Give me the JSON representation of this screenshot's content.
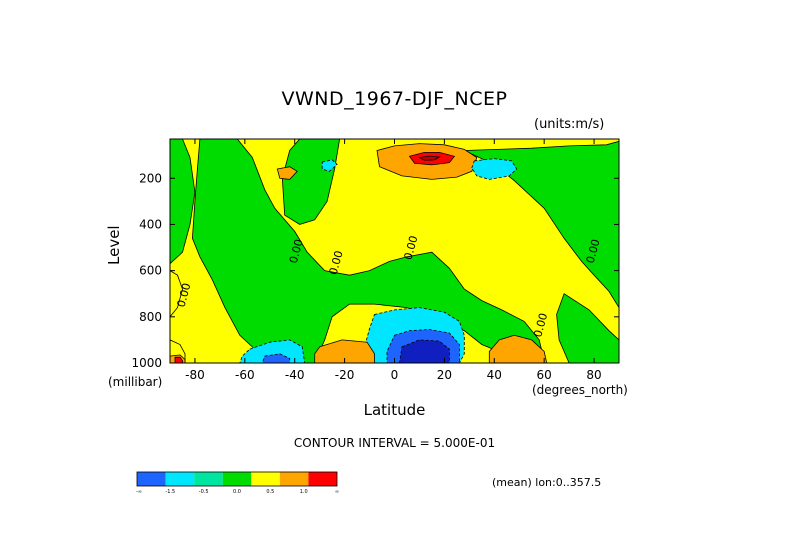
{
  "chart_data": {
    "type": "heatmap",
    "title": "VWND_1967-DJF_NCEP",
    "units_label": "(units:m/s)",
    "xlabel": "Latitude",
    "xunits": "(degrees_north)",
    "ylabel": "Level",
    "yunits": "(millibar)",
    "xlim": [
      -90,
      90
    ],
    "ylim": [
      1000,
      0
    ],
    "x_ticks": [
      "-80",
      "-60",
      "-40",
      "-20",
      "0",
      "20",
      "40",
      "60",
      "80"
    ],
    "x_tick_values": [
      -80,
      -60,
      -40,
      -20,
      0,
      20,
      40,
      60,
      80
    ],
    "y_ticks": [
      "200",
      "400",
      "600",
      "800",
      "1000"
    ],
    "y_tick_values": [
      200,
      400,
      600,
      800,
      1000
    ],
    "contour_interval_text": "CONTOUR INTERVAL = 5.000E-01",
    "mean_text": "(mean) lon:0..357.5",
    "contour_labels": [
      {
        "text": "0.00",
        "x": -83,
        "y": 710
      },
      {
        "text": "0.00",
        "x": -38,
        "y": 520
      },
      {
        "text": "0.00",
        "x": -22,
        "y": 570
      },
      {
        "text": "0.00",
        "x": 8,
        "y": 505
      },
      {
        "text": "0.00",
        "x": 60,
        "y": 840
      },
      {
        "text": "0.00",
        "x": 81,
        "y": 520
      }
    ],
    "colorbar": {
      "labels": [
        "-∞",
        "-1.5",
        "-0.5",
        "0.0",
        "0.5",
        "1.0",
        "∞"
      ],
      "colors": [
        "#1e64ff",
        "#00e6ff",
        "#00e6a0",
        "#00dc00",
        "#ffff00",
        "#ffa500",
        "#ff0000"
      ]
    },
    "level_colors": {
      "strong_negative": "#1020c0",
      "negative": "#1e64ff",
      "weak_negative": "#00e6ff",
      "near_zero_negative": "#00dc00",
      "near_zero_positive": "#ffff00",
      "positive": "#ffa500",
      "strong_positive": "#ff0000",
      "max_positive": "#c00000"
    },
    "regions": [
      {
        "level": "near_zero_positive",
        "points": [
          [
            -90,
            30
          ],
          [
            90,
            30
          ],
          [
            90,
            1000
          ],
          [
            -90,
            1000
          ]
        ]
      },
      {
        "level": "near_zero_negative",
        "points": [
          [
            -90,
            30
          ],
          [
            -85,
            30
          ],
          [
            -82,
            110
          ],
          [
            -80,
            260
          ],
          [
            -82,
            400
          ],
          [
            -85,
            520
          ],
          [
            -90,
            570
          ]
        ]
      },
      {
        "level": "near_zero_negative",
        "points": [
          [
            -78,
            30
          ],
          [
            -63,
            30
          ],
          [
            -57,
            110
          ],
          [
            -52,
            250
          ],
          [
            -48,
            330
          ],
          [
            -40,
            430
          ],
          [
            -35,
            520
          ],
          [
            -28,
            600
          ],
          [
            -18,
            620
          ],
          [
            -10,
            600
          ],
          [
            -2,
            560
          ],
          [
            5,
            540
          ],
          [
            15,
            520
          ],
          [
            22,
            590
          ],
          [
            28,
            680
          ],
          [
            35,
            730
          ],
          [
            43,
            770
          ],
          [
            52,
            820
          ],
          [
            58,
            900
          ],
          [
            60,
            990
          ],
          [
            53,
            1000
          ],
          [
            44,
            960
          ],
          [
            35,
            920
          ],
          [
            28,
            860
          ],
          [
            18,
            810
          ],
          [
            5,
            760
          ],
          [
            -8,
            745
          ],
          [
            -18,
            745
          ],
          [
            -25,
            800
          ],
          [
            -28,
            900
          ],
          [
            -32,
            1000
          ],
          [
            -45,
            1000
          ],
          [
            -55,
            950
          ],
          [
            -62,
            880
          ],
          [
            -68,
            760
          ],
          [
            -73,
            640
          ],
          [
            -78,
            540
          ],
          [
            -81,
            460
          ],
          [
            -80,
            300
          ],
          [
            -79,
            160
          ]
        ]
      },
      {
        "level": "near_zero_negative",
        "points": [
          [
            -38,
            30
          ],
          [
            -22,
            30
          ],
          [
            -24,
            160
          ],
          [
            -27,
            300
          ],
          [
            -32,
            380
          ],
          [
            -38,
            400
          ],
          [
            -44,
            360
          ],
          [
            -45,
            200
          ],
          [
            -42,
            80
          ]
        ]
      },
      {
        "level": "near_zero_negative",
        "points": [
          [
            28,
            80
          ],
          [
            55,
            70
          ],
          [
            70,
            60
          ],
          [
            85,
            55
          ],
          [
            90,
            40
          ],
          [
            90,
            760
          ],
          [
            86,
            690
          ],
          [
            80,
            620
          ],
          [
            75,
            560
          ],
          [
            68,
            460
          ],
          [
            60,
            330
          ],
          [
            48,
            210
          ],
          [
            40,
            140
          ],
          [
            32,
            100
          ]
        ]
      },
      {
        "level": "near_zero_negative",
        "points": [
          [
            68,
            700
          ],
          [
            78,
            770
          ],
          [
            86,
            860
          ],
          [
            90,
            900
          ],
          [
            90,
            1000
          ],
          [
            70,
            1000
          ],
          [
            66,
            900
          ],
          [
            65,
            790
          ]
        ]
      },
      {
        "level": "near_zero_positive",
        "points": [
          [
            -90,
            600
          ],
          [
            -87,
            620
          ],
          [
            -85,
            680
          ],
          [
            -87,
            760
          ],
          [
            -90,
            800
          ]
        ]
      },
      {
        "level": "near_zero_positive",
        "points": [
          [
            -90,
            900
          ],
          [
            -86,
            920
          ],
          [
            -84,
            960
          ],
          [
            -84,
            1000
          ],
          [
            -90,
            1000
          ]
        ]
      },
      {
        "level": "positive",
        "points": [
          [
            -90,
            970
          ],
          [
            -86,
            965
          ],
          [
            -84,
            985
          ],
          [
            -84,
            1000
          ],
          [
            -90,
            1000
          ]
        ]
      },
      {
        "level": "strong_positive",
        "points": [
          [
            -88,
            975
          ],
          [
            -86,
            975
          ],
          [
            -85,
            990
          ],
          [
            -85,
            1000
          ],
          [
            -88,
            1000
          ]
        ]
      },
      {
        "level": "positive",
        "points": [
          [
            -7,
            80
          ],
          [
            0,
            60
          ],
          [
            10,
            50
          ],
          [
            20,
            55
          ],
          [
            28,
            75
          ],
          [
            33,
            110
          ],
          [
            31,
            170
          ],
          [
            25,
            195
          ],
          [
            15,
            205
          ],
          [
            3,
            190
          ],
          [
            -6,
            150
          ]
        ]
      },
      {
        "level": "strong_positive",
        "points": [
          [
            6,
            105
          ],
          [
            12,
            88
          ],
          [
            18,
            88
          ],
          [
            24,
            105
          ],
          [
            22,
            132
          ],
          [
            15,
            142
          ],
          [
            8,
            135
          ]
        ]
      },
      {
        "level": "max_positive",
        "points": [
          [
            10,
            110
          ],
          [
            14,
            104
          ],
          [
            18,
            108
          ],
          [
            16,
            120
          ],
          [
            12,
            122
          ]
        ]
      },
      {
        "level": "positive",
        "points": [
          [
            -47,
            160
          ],
          [
            -42,
            150
          ],
          [
            -39,
            170
          ],
          [
            -42,
            205
          ],
          [
            -46,
            200
          ]
        ]
      },
      {
        "level": "weak_negative",
        "points": [
          [
            -29,
            130
          ],
          [
            -25,
            120
          ],
          [
            -23,
            140
          ],
          [
            -26,
            170
          ],
          [
            -29,
            160
          ]
        ]
      },
      {
        "level": "weak_negative",
        "points": [
          [
            32,
            125
          ],
          [
            40,
            115
          ],
          [
            47,
            125
          ],
          [
            49,
            160
          ],
          [
            46,
            190
          ],
          [
            38,
            205
          ],
          [
            33,
            190
          ],
          [
            31,
            155
          ]
        ]
      },
      {
        "level": "weak_negative",
        "points": [
          [
            -8,
            790
          ],
          [
            0,
            770
          ],
          [
            10,
            760
          ],
          [
            20,
            780
          ],
          [
            26,
            820
          ],
          [
            28,
            880
          ],
          [
            28,
            960
          ],
          [
            26,
            1000
          ],
          [
            -12,
            1000
          ],
          [
            -12,
            930
          ],
          [
            -10,
            850
          ]
        ]
      },
      {
        "level": "negative",
        "points": [
          [
            0,
            880
          ],
          [
            6,
            860
          ],
          [
            14,
            855
          ],
          [
            22,
            870
          ],
          [
            26,
            920
          ],
          [
            26,
            1000
          ],
          [
            -3,
            1000
          ],
          [
            -3,
            950
          ]
        ]
      },
      {
        "level": "strong_negative",
        "points": [
          [
            3,
            930
          ],
          [
            10,
            900
          ],
          [
            18,
            905
          ],
          [
            22,
            940
          ],
          [
            22,
            1000
          ],
          [
            2,
            1000
          ]
        ]
      },
      {
        "level": "weak_negative",
        "points": [
          [
            -58,
            940
          ],
          [
            -50,
            910
          ],
          [
            -42,
            900
          ],
          [
            -37,
            930
          ],
          [
            -36,
            1000
          ],
          [
            -62,
            1000
          ],
          [
            -61,
            970
          ]
        ]
      },
      {
        "level": "negative",
        "points": [
          [
            -52,
            970
          ],
          [
            -46,
            960
          ],
          [
            -42,
            980
          ],
          [
            -42,
            1000
          ],
          [
            -53,
            1000
          ]
        ]
      },
      {
        "level": "positive",
        "points": [
          [
            -30,
            930
          ],
          [
            -21,
            900
          ],
          [
            -11,
            910
          ],
          [
            -8,
            960
          ],
          [
            -8,
            1000
          ],
          [
            -32,
            1000
          ],
          [
            -32,
            960
          ]
        ]
      },
      {
        "level": "positive",
        "points": [
          [
            38,
            950
          ],
          [
            42,
            900
          ],
          [
            48,
            880
          ],
          [
            55,
            900
          ],
          [
            60,
            950
          ],
          [
            61,
            1000
          ],
          [
            38,
            1000
          ]
        ]
      }
    ]
  }
}
